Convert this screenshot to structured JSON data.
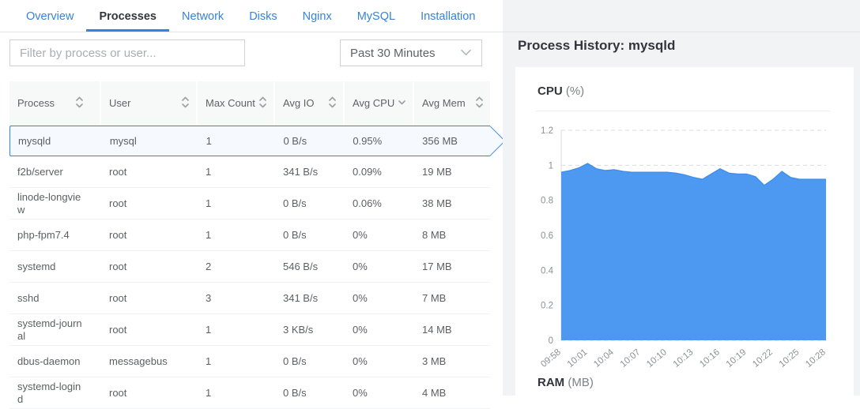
{
  "tabs": {
    "items": [
      {
        "label": "Overview",
        "active": false
      },
      {
        "label": "Processes",
        "active": true
      },
      {
        "label": "Network",
        "active": false
      },
      {
        "label": "Disks",
        "active": false
      },
      {
        "label": "Nginx",
        "active": false
      },
      {
        "label": "MySQL",
        "active": false
      },
      {
        "label": "Installation",
        "active": false
      }
    ]
  },
  "toolbar": {
    "filter_placeholder": "Filter by process or user...",
    "time_range": "Past 30 Minutes"
  },
  "table": {
    "columns": [
      {
        "label": "Process",
        "sort": "both"
      },
      {
        "label": "User",
        "sort": "both"
      },
      {
        "label": "Max Count",
        "sort": "both"
      },
      {
        "label": "Avg IO",
        "sort": "both"
      },
      {
        "label": "Avg CPU",
        "sort": "desc"
      },
      {
        "label": "Avg Mem",
        "sort": "both"
      }
    ],
    "rows": [
      {
        "process": "mysqld",
        "user": "mysql",
        "max_count": "1",
        "avg_io": "0 B/s",
        "avg_cpu": "0.95%",
        "avg_mem": "356 MB",
        "selected": true
      },
      {
        "process": "f2b/server",
        "user": "root",
        "max_count": "1",
        "avg_io": "341 B/s",
        "avg_cpu": "0.09%",
        "avg_mem": "19 MB",
        "selected": false
      },
      {
        "process": "linode-longview",
        "user": "root",
        "max_count": "1",
        "avg_io": "0 B/s",
        "avg_cpu": "0.06%",
        "avg_mem": "38 MB",
        "selected": false
      },
      {
        "process": "php-fpm7.4",
        "user": "root",
        "max_count": "1",
        "avg_io": "0 B/s",
        "avg_cpu": "0%",
        "avg_mem": "8 MB",
        "selected": false
      },
      {
        "process": "systemd",
        "user": "root",
        "max_count": "2",
        "avg_io": "546 B/s",
        "avg_cpu": "0%",
        "avg_mem": "17 MB",
        "selected": false
      },
      {
        "process": "sshd",
        "user": "root",
        "max_count": "3",
        "avg_io": "341 B/s",
        "avg_cpu": "0%",
        "avg_mem": "7 MB",
        "selected": false
      },
      {
        "process": "systemd-journal",
        "user": "root",
        "max_count": "1",
        "avg_io": "3 KB/s",
        "avg_cpu": "0%",
        "avg_mem": "14 MB",
        "selected": false
      },
      {
        "process": "dbus-daemon",
        "user": "messagebus",
        "max_count": "1",
        "avg_io": "0 B/s",
        "avg_cpu": "0%",
        "avg_mem": "3 MB",
        "selected": false
      },
      {
        "process": "systemd-logind",
        "user": "root",
        "max_count": "1",
        "avg_io": "0 B/s",
        "avg_cpu": "0%",
        "avg_mem": "4 MB",
        "selected": false
      }
    ]
  },
  "detail": {
    "title": "Process History: mysqld",
    "cpu_title": "CPU",
    "cpu_unit": "(%)",
    "ram_title": "RAM",
    "ram_unit": "(MB)"
  },
  "chart_data": {
    "type": "area",
    "title": "CPU (%)",
    "ylabel": "CPU %",
    "ylim": [
      0,
      1.2
    ],
    "y_ticks": [
      0,
      0.2,
      0.4,
      0.6,
      0.8,
      1,
      1.2
    ],
    "grid": "dashed-horizontal",
    "legend": "none",
    "x": [
      "09:58",
      "09:59",
      "10:00",
      "10:01",
      "10:02",
      "10:03",
      "10:04",
      "10:05",
      "10:06",
      "10:07",
      "10:08",
      "10:09",
      "10:10",
      "10:11",
      "10:12",
      "10:13",
      "10:14",
      "10:15",
      "10:16",
      "10:17",
      "10:18",
      "10:19",
      "10:20",
      "10:21",
      "10:22",
      "10:23",
      "10:24",
      "10:25",
      "10:26",
      "10:27",
      "10:28"
    ],
    "values": [
      0.96,
      0.97,
      0.985,
      1.01,
      0.98,
      0.97,
      0.975,
      0.965,
      0.96,
      0.96,
      0.96,
      0.96,
      0.96,
      0.955,
      0.945,
      0.93,
      0.92,
      0.95,
      0.98,
      0.955,
      0.95,
      0.95,
      0.935,
      0.885,
      0.92,
      0.965,
      0.93,
      0.92,
      0.92,
      0.92,
      0.92
    ],
    "x_tick_labels": [
      "09:58",
      "10:01",
      "10:04",
      "10:07",
      "10:10",
      "10:13",
      "10:16",
      "10:19",
      "10:22",
      "10:25",
      "10:28"
    ]
  },
  "colors": {
    "accent_blue": "#3683dc",
    "chart_fill": "#4d98f0",
    "selected_row_bg": "#f6fafe",
    "grid_line": "#d9dbde"
  }
}
